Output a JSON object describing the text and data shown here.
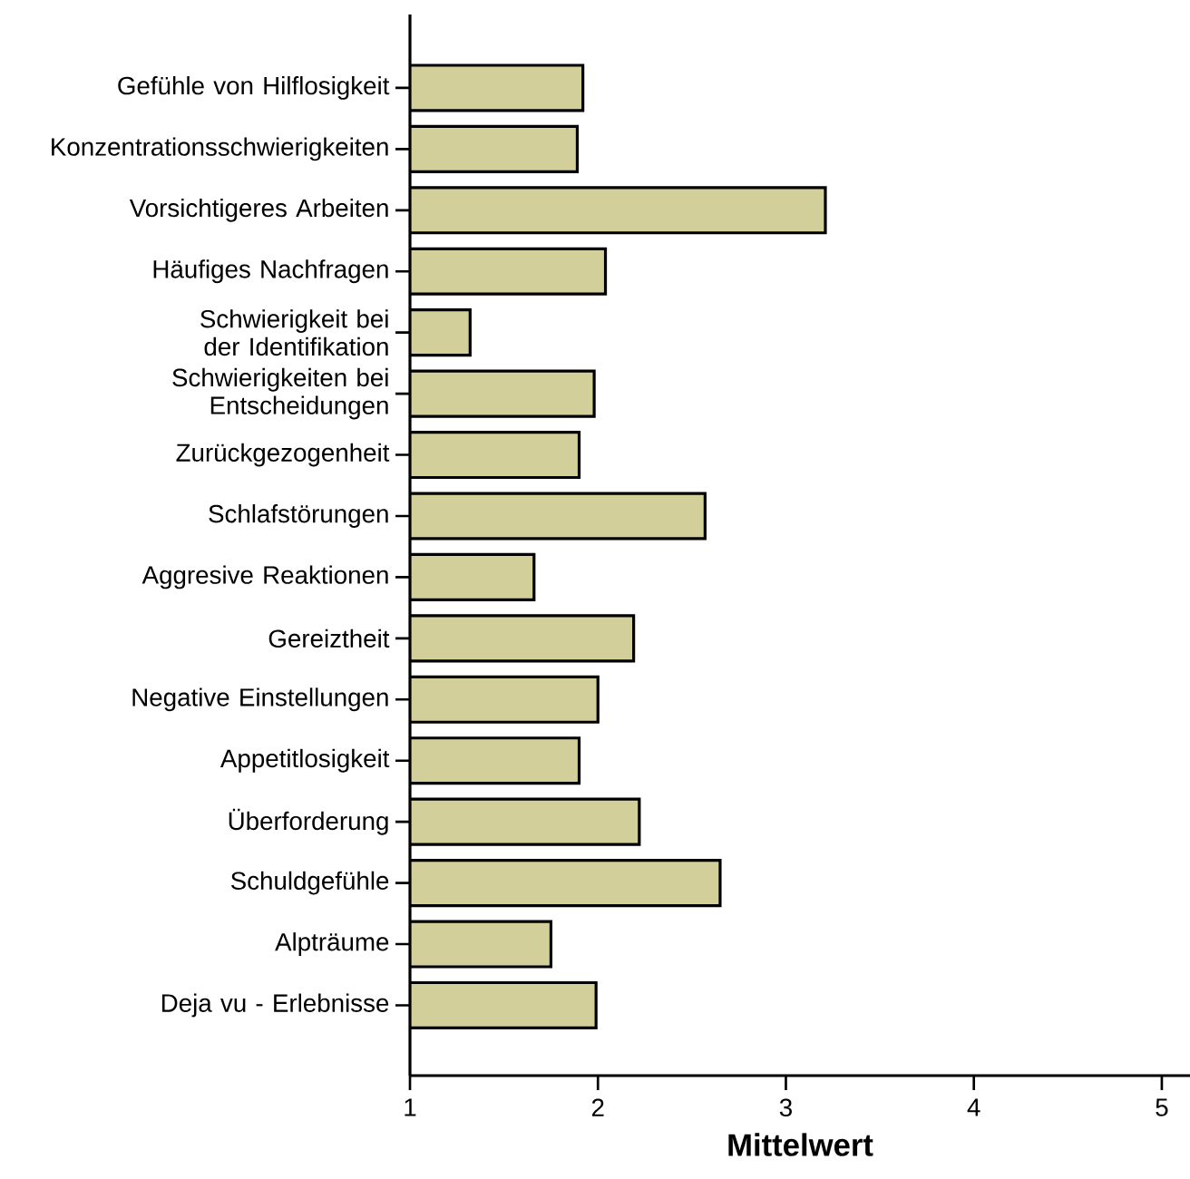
{
  "chart_data": {
    "type": "bar",
    "orientation": "horizontal",
    "xlabel": "**Mittelwert**",
    "categories": [
      "Gefühle von Hilflosigkeit",
      "Konzentrationsschwierigkeiten",
      "Vorsichtigeres Arbeiten",
      "Häufiges Nachfragen",
      "Schwierigkeit bei der Identifikation",
      "Schwierigkeiten bei Entscheidungen",
      "Zurückgezogenheit",
      "Schlafstörungen",
      "Aggresive Reaktionen",
      "Gereiztheit",
      "Negative Einstellungen",
      "Appetitlosigkeit",
      "Überforderung",
      "Schuldgefühle",
      "Alpträume",
      "Deja vu - Erlebnisse"
    ],
    "values": [
      1.92,
      1.89,
      3.21,
      2.04,
      1.32,
      1.98,
      1.9,
      2.57,
      1.66,
      2.19,
      2.0,
      1.9,
      2.22,
      2.65,
      1.75,
      1.99
    ],
    "color": "#d3cf9b",
    "xlim": [
      1,
      5.15
    ],
    "xticks": [
      1,
      2,
      3,
      4,
      5
    ]
  }
}
